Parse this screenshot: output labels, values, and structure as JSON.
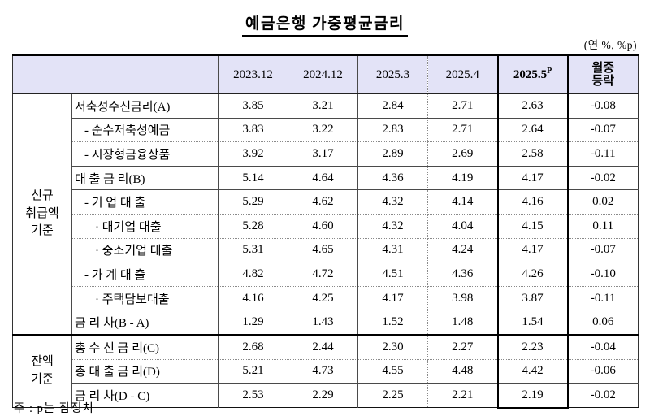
{
  "title": "예금은행  가중평균금리",
  "unit_note": "(연 %, %p)",
  "footnote": "주 : p는 잠정치",
  "colors": {
    "header_bg": "#e3e3f7",
    "thin_border": "#4a4a4a",
    "thick_border": "#000000",
    "dotted_border": "#8a8a8a",
    "text": "#000000"
  },
  "table": {
    "columns": [
      {
        "label": "2023.12"
      },
      {
        "label": "2024.12"
      },
      {
        "label": "2025.3"
      },
      {
        "label": "2025.4",
        "vdot": true
      },
      {
        "label": "2025.5",
        "sup": "P",
        "highlight": true,
        "bold": true
      },
      {
        "label": "월중\n등락",
        "bold": true
      }
    ],
    "groups": [
      {
        "label": "신규\n취급액\n기준",
        "rows": [
          {
            "label": "저축성수신금리(A)",
            "indent": 0,
            "sep": "solid",
            "values": [
              "3.85",
              "3.21",
              "2.84",
              "2.71",
              "2.63",
              "-0.08"
            ]
          },
          {
            "label": "- 순수저축성예금",
            "indent": 1,
            "sep": "solid",
            "values": [
              "3.83",
              "3.22",
              "2.83",
              "2.71",
              "2.64",
              "-0.07"
            ]
          },
          {
            "label": "- 시장형금융상품",
            "indent": 1,
            "sep": "dotted",
            "values": [
              "3.92",
              "3.17",
              "2.89",
              "2.69",
              "2.58",
              "-0.11"
            ]
          },
          {
            "label": "대 출 금 리(B)",
            "indent": 0,
            "sep": "solid",
            "values": [
              "5.14",
              "4.64",
              "4.36",
              "4.19",
              "4.17",
              "-0.02"
            ]
          },
          {
            "label": "- 기 업 대 출",
            "indent": 1,
            "sep": "solid",
            "values": [
              "5.29",
              "4.62",
              "4.32",
              "4.14",
              "4.16",
              "0.02"
            ]
          },
          {
            "label": "· 대기업 대출",
            "indent": 2,
            "sep": "dotted",
            "values": [
              "5.28",
              "4.60",
              "4.32",
              "4.04",
              "4.15",
              "0.11"
            ]
          },
          {
            "label": "· 중소기업 대출",
            "indent": 2,
            "sep": "dotted",
            "values": [
              "5.31",
              "4.65",
              "4.31",
              "4.24",
              "4.17",
              "-0.07"
            ]
          },
          {
            "label": "- 가 계 대 출",
            "indent": 1,
            "sep": "dotted",
            "values": [
              "4.82",
              "4.72",
              "4.51",
              "4.36",
              "4.26",
              "-0.10"
            ]
          },
          {
            "label": "· 주택담보대출",
            "indent": 2,
            "sep": "dotted",
            "values": [
              "4.16",
              "4.25",
              "4.17",
              "3.98",
              "3.87",
              "-0.11"
            ]
          },
          {
            "label": "금 리 차(B - A)",
            "indent": 0,
            "sep": "solid",
            "values": [
              "1.29",
              "1.43",
              "1.52",
              "1.48",
              "1.54",
              "0.06"
            ]
          }
        ]
      },
      {
        "label": "잔액\n기준",
        "rows": [
          {
            "label": "총 수 신 금 리(C)",
            "indent": 0,
            "sep": "thick",
            "values": [
              "2.68",
              "2.44",
              "2.30",
              "2.27",
              "2.23",
              "-0.04"
            ]
          },
          {
            "label": "총 대 출 금 리(D)",
            "indent": 0,
            "sep": "dotted",
            "values": [
              "5.21",
              "4.73",
              "4.55",
              "4.48",
              "4.42",
              "-0.06"
            ]
          },
          {
            "label": "금 리 차(D - C)",
            "indent": 0,
            "sep": "solid",
            "values": [
              "2.53",
              "2.29",
              "2.25",
              "2.21",
              "2.19",
              "-0.02"
            ]
          }
        ]
      }
    ]
  }
}
